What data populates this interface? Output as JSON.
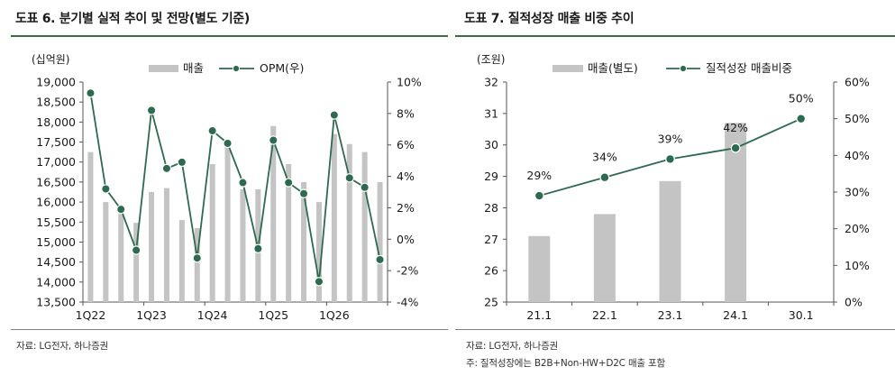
{
  "left": {
    "title": "도표 6. 분기별 실적 추이 및 전망(별도 기준)",
    "source": "자료: LG전자, 하나증권"
  },
  "right": {
    "title": "도표 7. 질적성장 매출 비중 추이",
    "source": "자료: LG전자, 하나증권",
    "note": "주: 질적성장에는 B2B+Non-HW+D2C 매출 포함"
  },
  "colors": {
    "bar": "#c4c4c4",
    "line": "#2d6a4f",
    "rule": "#3f6b41"
  },
  "chart_data": [
    {
      "type": "bar",
      "y_unit_label": "(십억원)",
      "x": [
        "1Q22",
        "2Q22",
        "3Q22",
        "4Q22",
        "1Q23",
        "2Q23",
        "3Q23",
        "4Q23",
        "1Q24",
        "2Q24",
        "3Q24",
        "4Q24",
        "1Q25",
        "2Q25",
        "3Q25",
        "4Q25",
        "1Q26",
        "2Q26",
        "3Q26",
        "4Q26"
      ],
      "x_tick_labels": [
        "1Q22",
        "1Q23",
        "1Q24",
        "1Q25",
        "1Q26"
      ],
      "series": [
        {
          "name": "매출",
          "axis": "left",
          "type": "bar",
          "values": [
            17250,
            16000,
            15800,
            15480,
            16250,
            16350,
            15550,
            15350,
            16950,
            17500,
            16320,
            16320,
            17900,
            16950,
            16500,
            16000,
            17700,
            17450,
            17250,
            16500
          ]
        },
        {
          "name": "OPM(우)",
          "axis": "right",
          "type": "line",
          "values": [
            9.3,
            3.2,
            1.9,
            -0.7,
            8.2,
            4.5,
            4.9,
            -1.2,
            6.9,
            6.1,
            3.6,
            -0.6,
            6.3,
            3.6,
            2.9,
            -2.7,
            7.9,
            3.9,
            3.3,
            -1.3
          ]
        }
      ],
      "ylim_left": [
        13500,
        19000
      ],
      "y_ticks_left": [
        "13,500",
        "14,000",
        "14,500",
        "15,000",
        "15,500",
        "16,000",
        "16,500",
        "17,000",
        "17,500",
        "18,000",
        "18,500",
        "19,000"
      ],
      "ylim_right": [
        -4,
        10
      ],
      "y_ticks_right": [
        "-4%",
        "-2%",
        "0%",
        "2%",
        "4%",
        "6%",
        "8%",
        "10%"
      ],
      "legend": "top-center"
    },
    {
      "type": "bar",
      "y_unit_label": "(조원)",
      "categories": [
        "21.1",
        "22.1",
        "23.1",
        "24.1",
        "30.1"
      ],
      "series": [
        {
          "name": "매출(별도)",
          "axis": "left",
          "type": "bar",
          "values": [
            27.1,
            27.8,
            28.85,
            30.7,
            null
          ]
        },
        {
          "name": "질적성장 매출비중",
          "axis": "right",
          "type": "line",
          "values": [
            29,
            34,
            39,
            42,
            50
          ]
        }
      ],
      "data_labels": [
        "29%",
        "34%",
        "39%",
        "42%",
        "50%"
      ],
      "ylim_left": [
        25,
        32
      ],
      "y_ticks_left": [
        "25",
        "26",
        "27",
        "28",
        "29",
        "30",
        "31",
        "32"
      ],
      "ylim_right": [
        0,
        60
      ],
      "y_ticks_right": [
        "0%",
        "10%",
        "20%",
        "30%",
        "40%",
        "50%",
        "60%"
      ],
      "legend": "top-center"
    }
  ]
}
